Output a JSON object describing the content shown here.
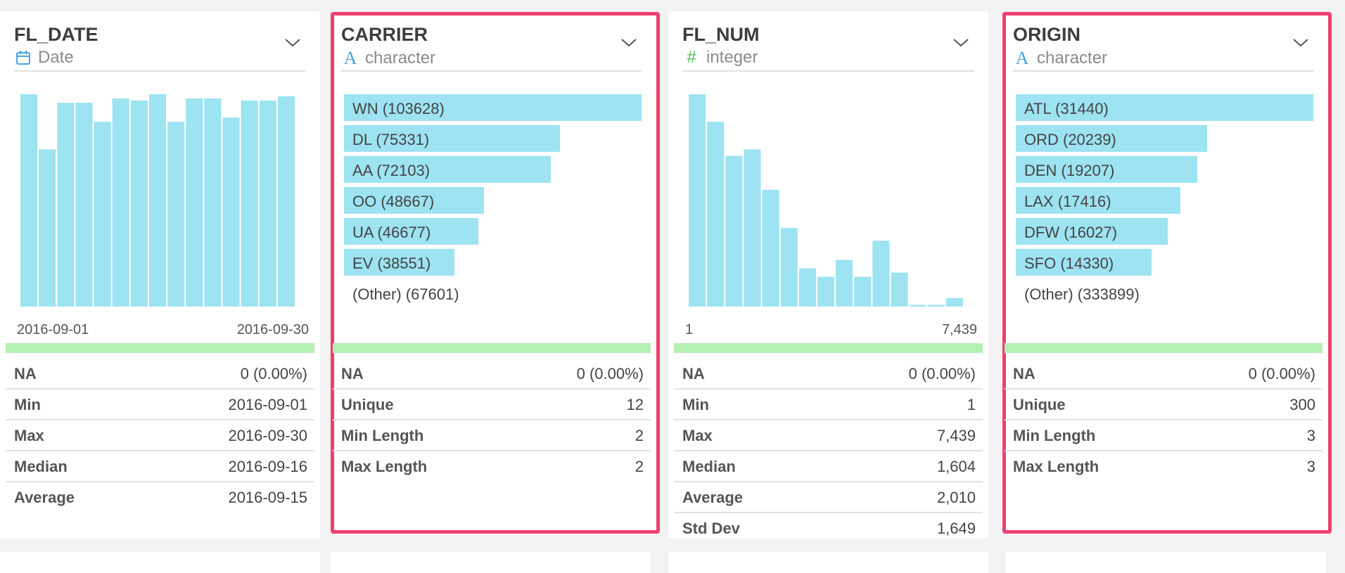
{
  "colors": {
    "highlight_border": "#ef3f6f",
    "bar_fill": "#9de3f2",
    "na_bar_fill": "#b4f0b2",
    "date_icon": "#4aa3df",
    "char_icon": "#4aa3df",
    "int_icon": "#4cbf55"
  },
  "cards": [
    {
      "name": "FL_DATE",
      "type_label": "Date",
      "type_icon": "calendar-icon",
      "highlighted": false,
      "chart_kind": "histogram",
      "axis_min": "2016-09-01",
      "axis_max": "2016-09-30",
      "stats": [
        {
          "label": "NA",
          "value": "0 (0.00%)"
        },
        {
          "label": "Min",
          "value": "2016-09-01"
        },
        {
          "label": "Max",
          "value": "2016-09-30"
        },
        {
          "label": "Median",
          "value": "2016-09-16"
        },
        {
          "label": "Average",
          "value": "2016-09-15"
        }
      ]
    },
    {
      "name": "CARRIER",
      "type_label": "character",
      "type_icon": "character-icon",
      "highlighted": true,
      "chart_kind": "categories",
      "categories": [
        {
          "label": "WN (103628)",
          "count": 103628
        },
        {
          "label": "DL (75331)",
          "count": 75331
        },
        {
          "label": "AA (72103)",
          "count": 72103
        },
        {
          "label": "OO (48667)",
          "count": 48667
        },
        {
          "label": "UA (46677)",
          "count": 46677
        },
        {
          "label": "EV (38551)",
          "count": 38551
        }
      ],
      "other_label": "(Other) (67601)",
      "stats": [
        {
          "label": "NA",
          "value": "0 (0.00%)"
        },
        {
          "label": "Unique",
          "value": "12"
        },
        {
          "label": "Min Length",
          "value": "2"
        },
        {
          "label": "Max Length",
          "value": "2"
        }
      ]
    },
    {
      "name": "FL_NUM",
      "type_label": "integer",
      "type_icon": "hash-icon",
      "highlighted": false,
      "chart_kind": "histogram",
      "axis_min": "1",
      "axis_max": "7,439",
      "stats": [
        {
          "label": "NA",
          "value": "0 (0.00%)"
        },
        {
          "label": "Min",
          "value": "1"
        },
        {
          "label": "Max",
          "value": "7,439"
        },
        {
          "label": "Median",
          "value": "1,604"
        },
        {
          "label": "Average",
          "value": "2,010"
        },
        {
          "label": "Std Dev",
          "value": "1,649"
        }
      ]
    },
    {
      "name": "ORIGIN",
      "type_label": "character",
      "type_icon": "character-icon",
      "highlighted": true,
      "chart_kind": "categories",
      "categories": [
        {
          "label": "ATL (31440)",
          "count": 31440
        },
        {
          "label": "ORD (20239)",
          "count": 20239
        },
        {
          "label": "DEN (19207)",
          "count": 19207
        },
        {
          "label": "LAX (17416)",
          "count": 17416
        },
        {
          "label": "DFW (16027)",
          "count": 16027
        },
        {
          "label": "SFO (14330)",
          "count": 14330
        }
      ],
      "other_label": "(Other) (333899)",
      "stats": [
        {
          "label": "NA",
          "value": "0 (0.00%)"
        },
        {
          "label": "Unique",
          "value": "300"
        },
        {
          "label": "Min Length",
          "value": "3"
        },
        {
          "label": "Max Length",
          "value": "3"
        }
      ]
    }
  ],
  "chart_data": [
    {
      "type": "bar",
      "column": "FL_DATE",
      "title": "",
      "values": [
        100,
        74,
        96,
        96,
        87,
        98,
        97,
        100,
        87,
        98,
        98,
        89,
        97,
        97,
        99
      ],
      "ylim": [
        0,
        100
      ],
      "xlabel": "",
      "ylabel": "",
      "x_range": [
        "2016-09-01",
        "2016-09-30"
      ]
    },
    {
      "type": "bar",
      "column": "FL_NUM",
      "title": "",
      "values": [
        100,
        87,
        71,
        74,
        55,
        37,
        18,
        14,
        22,
        14,
        31,
        16,
        0.8,
        0.8,
        4
      ],
      "ylim": [
        0,
        100
      ],
      "xlabel": "",
      "ylabel": "",
      "x_range": [
        "1",
        "7,439"
      ]
    }
  ]
}
